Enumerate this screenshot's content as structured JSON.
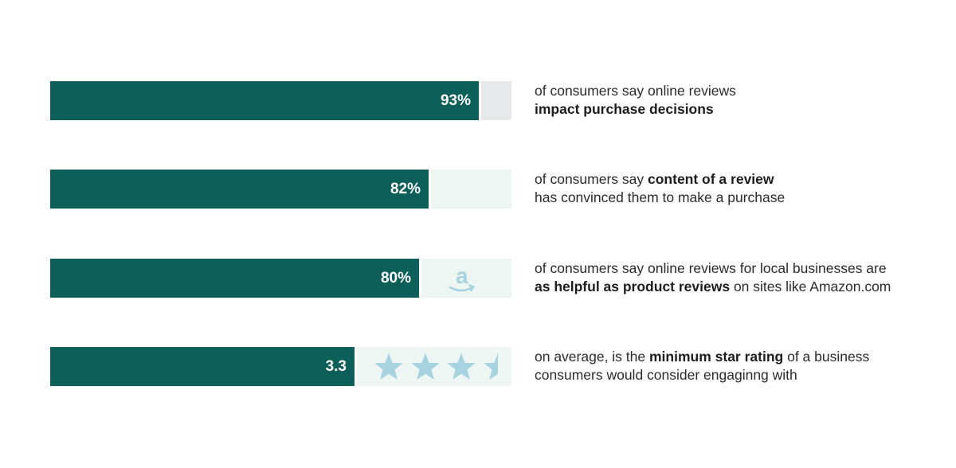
{
  "chart_data": {
    "type": "bar",
    "orientation": "horizontal",
    "colors": {
      "bar": "#0d5f59",
      "track": [
        "#e5e9e9",
        "#eef6f3",
        "#eef6f3",
        "#eef6f3"
      ],
      "icon": "#a7d3e0"
    },
    "rows": [
      {
        "value": 93,
        "max": 100,
        "value_label": "93%",
        "remainder_icon": "",
        "desc": [
          {
            "text": "of consumers say online reviews",
            "bold": false
          },
          {
            "br": true
          },
          {
            "text": "impact purchase decisions",
            "bold": true
          }
        ]
      },
      {
        "value": 82,
        "max": 100,
        "value_label": "82%",
        "remainder_icon": "",
        "desc": [
          {
            "text": "of consumers say ",
            "bold": false
          },
          {
            "text": "content of a review",
            "bold": true
          },
          {
            "br": true
          },
          {
            "text": "has convinced them to make a purchase",
            "bold": false
          }
        ]
      },
      {
        "value": 80,
        "max": 100,
        "value_label": "80%",
        "remainder_icon": "amazon-logo-icon",
        "desc": [
          {
            "text": "of consumers say online reviews for local businesses are",
            "bold": false
          },
          {
            "br": true
          },
          {
            "text": "as helpful as product reviews",
            "bold": true
          },
          {
            "text": " on sites like Amazon.com",
            "bold": false
          }
        ]
      },
      {
        "value": 3.3,
        "max": 5,
        "value_label": "3.3",
        "remainder_icon": "star-icon",
        "stars": 3.3,
        "desc": [
          {
            "text": "on average, is the ",
            "bold": false
          },
          {
            "text": "minimum star rating",
            "bold": true
          },
          {
            "text": " of a business",
            "bold": false
          },
          {
            "br": true
          },
          {
            "text": "consumers would consider engaginng with",
            "bold": false
          }
        ]
      }
    ]
  }
}
